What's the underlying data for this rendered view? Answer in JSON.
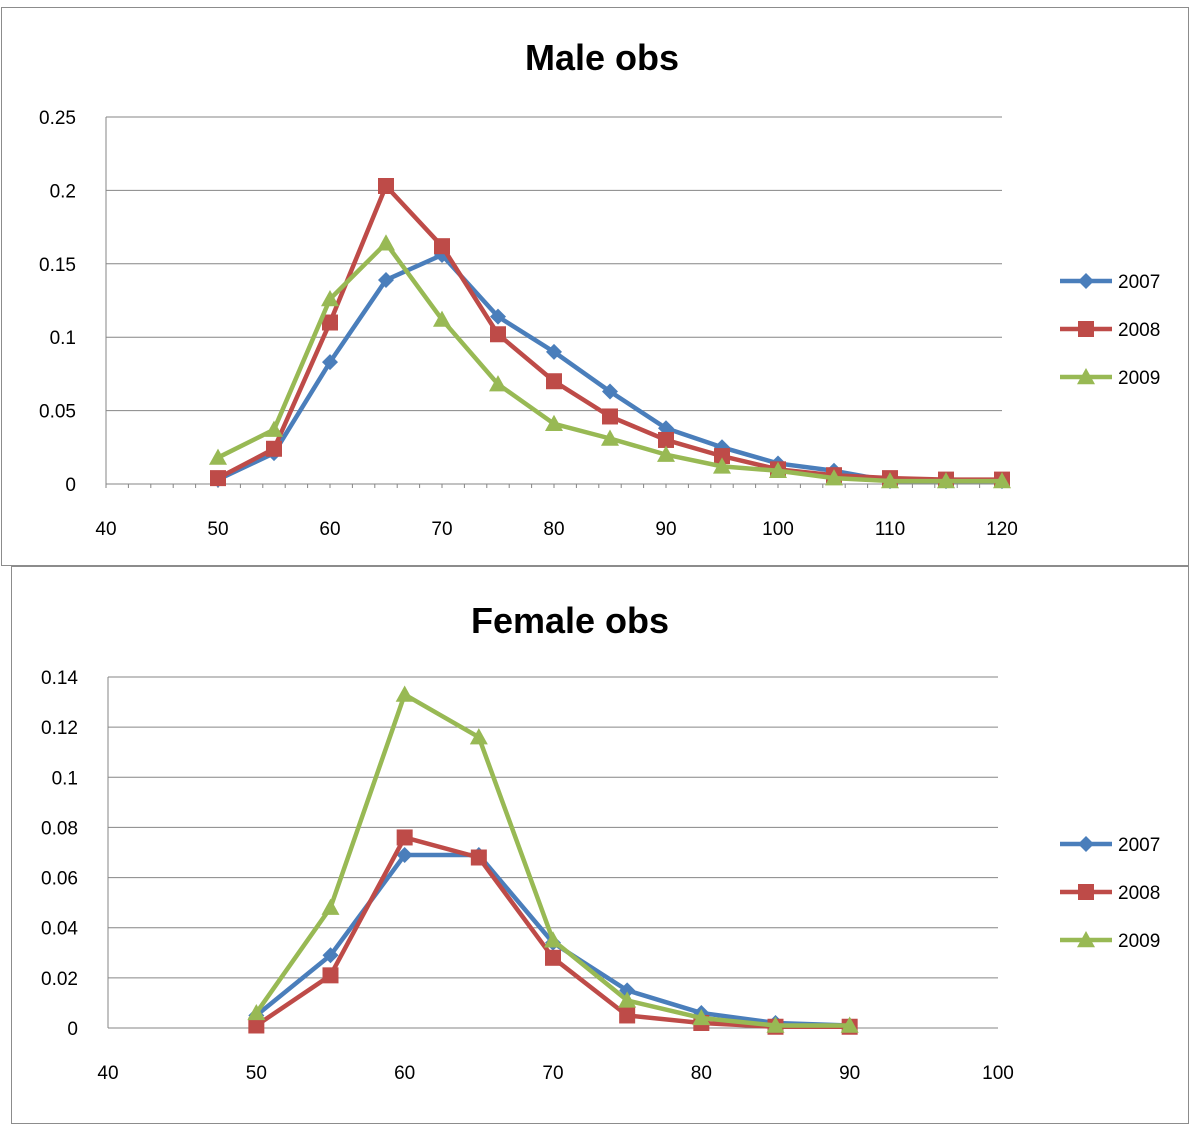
{
  "chart_data": [
    {
      "type": "line",
      "title": "Male obs",
      "xlabel": "",
      "ylabel": "",
      "xlim": [
        40,
        120
      ],
      "ylim": [
        0,
        0.25
      ],
      "x_ticks": [
        "40",
        "50",
        "60",
        "70",
        "80",
        "90",
        "100",
        "110",
        "120"
      ],
      "y_ticks": [
        "0",
        "0.05",
        "0.1",
        "0.15",
        "0.2",
        "0.25"
      ],
      "grid": "horizontal",
      "legend_position": "right",
      "x": [
        50,
        55,
        60,
        65,
        70,
        75,
        80,
        85,
        90,
        95,
        100,
        105,
        110,
        115,
        120
      ],
      "series": [
        {
          "name": "2007",
          "color": "#4a7ebb",
          "marker": "diamond",
          "values": [
            0.003,
            0.021,
            0.083,
            0.139,
            0.156,
            0.114,
            0.09,
            0.063,
            0.038,
            0.025,
            0.014,
            0.009,
            0.002,
            0.002,
            0.002
          ]
        },
        {
          "name": "2008",
          "color": "#be4b48",
          "marker": "square",
          "values": [
            0.004,
            0.024,
            0.11,
            0.203,
            0.162,
            0.102,
            0.07,
            0.046,
            0.03,
            0.019,
            0.01,
            0.006,
            0.004,
            0.003,
            0.003
          ]
        },
        {
          "name": "2009",
          "color": "#98b954",
          "marker": "triangle",
          "values": [
            0.018,
            0.037,
            0.126,
            0.164,
            0.112,
            0.068,
            0.041,
            0.031,
            0.02,
            0.012,
            0.009,
            0.004,
            0.002,
            0.002,
            0.002
          ]
        }
      ]
    },
    {
      "type": "line",
      "title": "Female obs",
      "xlabel": "",
      "ylabel": "",
      "xlim": [
        40,
        100
      ],
      "ylim": [
        0,
        0.14
      ],
      "x_ticks": [
        "40",
        "50",
        "60",
        "70",
        "80",
        "90",
        "100"
      ],
      "y_ticks": [
        "0",
        "0.02",
        "0.04",
        "0.06",
        "0.08",
        "0.1",
        "0.12",
        "0.14"
      ],
      "grid": "horizontal",
      "legend_position": "right",
      "x": [
        50,
        55,
        60,
        65,
        70,
        75,
        80,
        85,
        90
      ],
      "series": [
        {
          "name": "2007",
          "color": "#4a7ebb",
          "marker": "diamond",
          "values": [
            0.005,
            0.029,
            0.069,
            0.069,
            0.034,
            0.015,
            0.006,
            0.002,
            0.001
          ]
        },
        {
          "name": "2008",
          "color": "#be4b48",
          "marker": "square",
          "values": [
            0.001,
            0.021,
            0.076,
            0.068,
            0.028,
            0.005,
            0.002,
            0.0005,
            0.0005
          ]
        },
        {
          "name": "2009",
          "color": "#98b954",
          "marker": "triangle",
          "values": [
            0.006,
            0.048,
            0.133,
            0.116,
            0.035,
            0.011,
            0.004,
            0.001,
            0.001
          ]
        }
      ]
    }
  ]
}
